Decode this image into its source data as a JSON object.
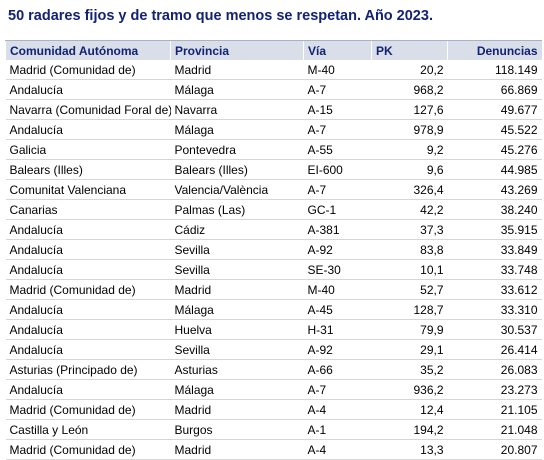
{
  "title": "50 radares fijos y de tramo que menos se respetan. Año 2023.",
  "table": {
    "headers": [
      "Comunidad Autónoma",
      "Provincia",
      "Vía",
      "PK",
      "Denuncias"
    ],
    "rows": [
      [
        "Madrid (Comunidad de)",
        "Madrid",
        "M-40",
        "20,2",
        "118.149"
      ],
      [
        "Andalucía",
        "Málaga",
        "A-7",
        "968,2",
        "66.869"
      ],
      [
        "Navarra (Comunidad Foral de)",
        "Navarra",
        "A-15",
        "127,6",
        "49.677"
      ],
      [
        "Andalucía",
        "Málaga",
        "A-7",
        "978,9",
        "45.522"
      ],
      [
        "Galicia",
        "Pontevedra",
        "A-55",
        "9,2",
        "45.276"
      ],
      [
        "Balears (Illes)",
        "Balears (Illes)",
        "EI-600",
        "9,6",
        "44.985"
      ],
      [
        "Comunitat Valenciana",
        "Valencia/València",
        "A-7",
        "326,4",
        "43.269"
      ],
      [
        "Canarias",
        "Palmas (Las)",
        "GC-1",
        "42,2",
        "38.240"
      ],
      [
        "Andalucía",
        "Cádiz",
        "A-381",
        "37,3",
        "35.915"
      ],
      [
        "Andalucía",
        "Sevilla",
        "A-92",
        "83,8",
        "33.849"
      ],
      [
        "Andalucía",
        "Sevilla",
        "SE-30",
        "10,1",
        "33.748"
      ],
      [
        "Madrid (Comunidad de)",
        "Madrid",
        "M-40",
        "52,7",
        "33.612"
      ],
      [
        "Andalucía",
        "Málaga",
        "A-45",
        "128,7",
        "33.310"
      ],
      [
        "Andalucía",
        "Huelva",
        "H-31",
        "79,9",
        "30.537"
      ],
      [
        "Andalucía",
        "Sevilla",
        "A-92",
        "29,1",
        "26.414"
      ],
      [
        "Asturias (Principado de)",
        "Asturias",
        "A-66",
        "35,2",
        "26.083"
      ],
      [
        "Andalucía",
        "Málaga",
        "A-7",
        "936,2",
        "23.273"
      ],
      [
        "Madrid (Comunidad de)",
        "Madrid",
        "A-4",
        "12,4",
        "21.105"
      ],
      [
        "Castilla y León",
        "Burgos",
        "A-1",
        "194,2",
        "21.048"
      ],
      [
        "Madrid (Comunidad de)",
        "Madrid",
        "A-4",
        "13,3",
        "20.807"
      ]
    ]
  }
}
